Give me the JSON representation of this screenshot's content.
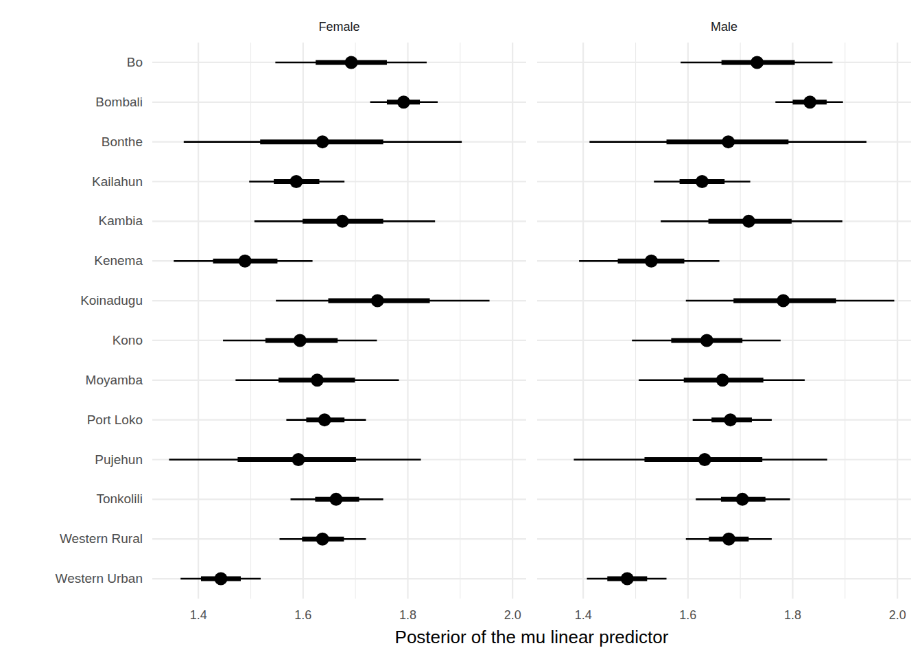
{
  "chart_data": {
    "type": "pointinterval",
    "x_label": "Posterior of the mu linear predictor",
    "categories": [
      "Bo",
      "Bombali",
      "Bonthe",
      "Kailahun",
      "Kambia",
      "Kenema",
      "Koinadugu",
      "Kono",
      "Moyamba",
      "Port Loko",
      "Pujehun",
      "Tonkolili",
      "Western Rural",
      "Western Urban"
    ],
    "xlim": [
      1.312,
      2.026
    ],
    "xticks": [
      1.4,
      1.6,
      1.8,
      {
        "value": 2,
        "label": "2.0"
      }
    ],
    "grid": true,
    "color": "#000000",
    "series": [
      {
        "name": "Female",
        "values": [
          1.692,
          1.792,
          1.637,
          1.587,
          1.675,
          1.489,
          1.742,
          1.594,
          1.627,
          1.641,
          1.591,
          1.663,
          1.637,
          1.443
        ],
        "inner_lower": [
          1.624,
          1.76,
          1.518,
          1.544,
          1.599,
          1.428,
          1.648,
          1.528,
          1.553,
          1.606,
          1.475,
          1.623,
          1.598,
          1.405
        ],
        "inner_upper": [
          1.76,
          1.823,
          1.753,
          1.631,
          1.753,
          1.551,
          1.842,
          1.666,
          1.699,
          1.679,
          1.701,
          1.707,
          1.678,
          1.481
        ],
        "outer_lower": [
          1.547,
          1.728,
          1.372,
          1.497,
          1.507,
          1.353,
          1.548,
          1.447,
          1.471,
          1.568,
          1.344,
          1.576,
          1.555,
          1.366
        ],
        "outer_upper": [
          1.836,
          1.857,
          1.903,
          1.679,
          1.852,
          1.618,
          1.956,
          1.741,
          1.783,
          1.72,
          1.825,
          1.753,
          1.72,
          1.519
        ]
      },
      {
        "name": "Male",
        "values": [
          1.732,
          1.833,
          1.677,
          1.627,
          1.716,
          1.53,
          1.782,
          1.636,
          1.666,
          1.681,
          1.632,
          1.704,
          1.678,
          1.484
        ],
        "inner_lower": [
          1.664,
          1.8,
          1.559,
          1.584,
          1.639,
          1.466,
          1.687,
          1.568,
          1.592,
          1.645,
          1.517,
          1.663,
          1.64,
          1.446
        ],
        "inner_upper": [
          1.804,
          1.865,
          1.792,
          1.67,
          1.798,
          1.593,
          1.883,
          1.704,
          1.744,
          1.722,
          1.742,
          1.748,
          1.716,
          1.522
        ],
        "outer_lower": [
          1.586,
          1.767,
          1.412,
          1.535,
          1.548,
          1.392,
          1.596,
          1.493,
          1.506,
          1.609,
          1.382,
          1.615,
          1.596,
          1.407
        ],
        "outer_upper": [
          1.876,
          1.896,
          1.941,
          1.719,
          1.895,
          1.66,
          1.994,
          1.777,
          1.823,
          1.76,
          1.866,
          1.795,
          1.76,
          1.559
        ]
      }
    ]
  }
}
